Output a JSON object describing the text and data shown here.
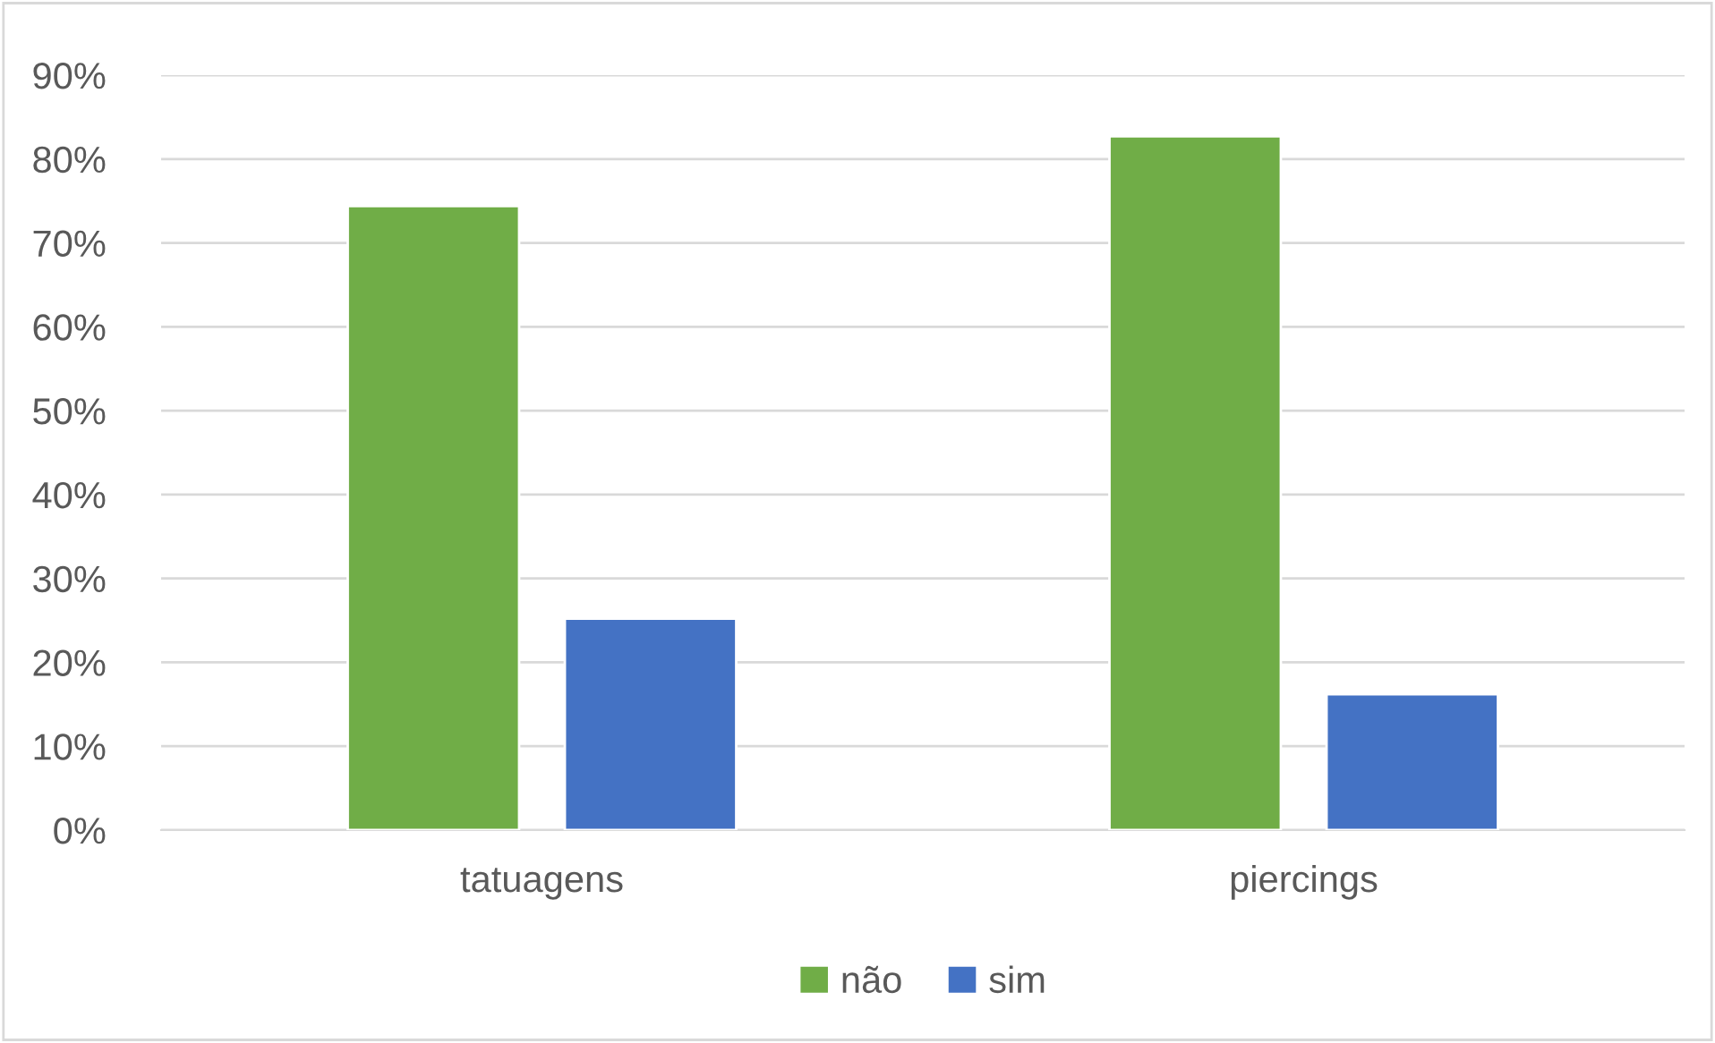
{
  "chart_data": {
    "type": "bar",
    "categories": [
      "tatuagens",
      "piercings"
    ],
    "series": [
      {
        "name": "não",
        "color": "#70ad47",
        "values": [
          74.4,
          82.7
        ]
      },
      {
        "name": "sim",
        "color": "#4472c4",
        "values": [
          25.2,
          16.2
        ]
      }
    ],
    "ylim": [
      0,
      90
    ],
    "yticks": [
      {
        "value": 0,
        "label": "0%"
      },
      {
        "value": 10,
        "label": "10%"
      },
      {
        "value": 20,
        "label": "20%"
      },
      {
        "value": 30,
        "label": "30%"
      },
      {
        "value": 40,
        "label": "40%"
      },
      {
        "value": 50,
        "label": "50%"
      },
      {
        "value": 60,
        "label": "60%"
      },
      {
        "value": 70,
        "label": "70%"
      },
      {
        "value": 80,
        "label": "80%"
      },
      {
        "value": 90,
        "label": "90%"
      }
    ],
    "grid": "y",
    "legend": "bottom"
  }
}
